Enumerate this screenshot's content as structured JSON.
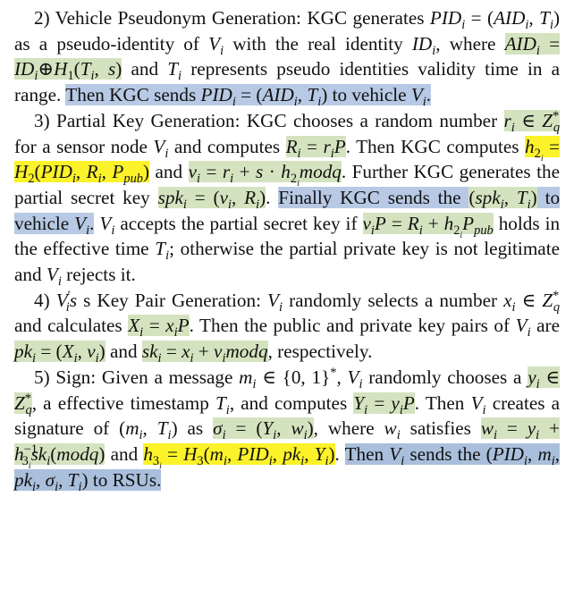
{
  "paragraphs": [
    {
      "id": "p2",
      "heading": "2) Vehicle Pseudonym Generation:",
      "text_a": "KGC generates",
      "pid_i": "PID",
      "text_b": "as a pseudo-identity of",
      "text_c": "with the real identity",
      "text_d": ", where",
      "text_e": "and",
      "text_f": "represents pseudo identities validity time in a range.",
      "hl_sentence": "Then KGC sends",
      "hl_tail": "to vehicle"
    },
    {
      "id": "p3",
      "heading": "3) Partial Key Generation:",
      "text_a": "KGC chooses a random number",
      "text_b": "for a sensor node",
      "text_c": "and computes",
      "text_d": ". Then KGC computes",
      "text_e": "and",
      "text_f": ". Further KGC generates the partial secret key",
      "hl_sentence": "Finally KGC sends the",
      "hl_tail": "to vehicle",
      "text_g": "accepts the partial secret key if",
      "text_h": "holds in the effective time",
      "text_i": "; otherwise the partial private key is not legitimate and",
      "text_j": "rejects it.",
      "modq": "modq"
    },
    {
      "id": "p4",
      "heading_tail": "s Key Pair Generation:",
      "text_a": "randomly selects a number",
      "text_b": "and calculates",
      "text_c": ". Then the public and private key pairs of",
      "text_d": "are",
      "text_e": "and",
      "text_f": "respectively.",
      "modq": "modq"
    },
    {
      "id": "p5",
      "heading": "5) Sign:",
      "text_a": "Given a message",
      "text_b": ",",
      "text_c": "randomly chooses a",
      "text_d": ", a effective timestamp",
      "text_e": ", and computes",
      "text_f": ". Then",
      "text_g": "creates a signature of",
      "text_h": "as",
      "text_i": ", where",
      "text_j": "satisfies",
      "text_k": "and",
      "hl_sentence": "Then",
      "hl_mid": "sends the",
      "hl_tail": "to RSUs.",
      "modq": "modq"
    }
  ],
  "colors": {
    "green_highlight": "#d4e3bf",
    "blue_highlight": "#b7c9e4",
    "yellow_highlight": "#fbf22a"
  }
}
